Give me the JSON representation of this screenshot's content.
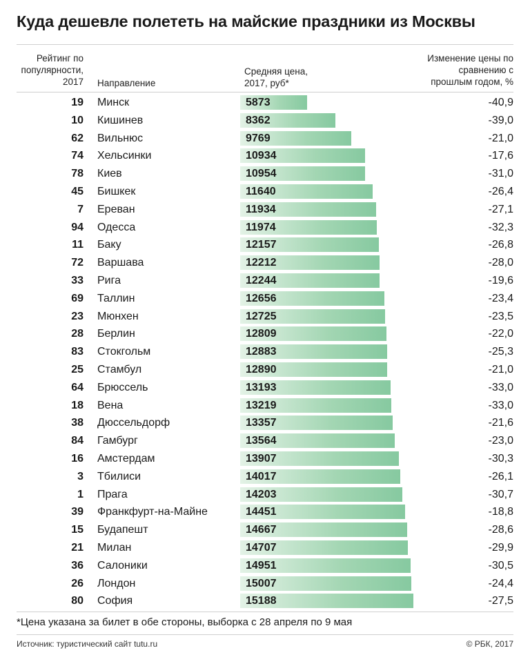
{
  "title": "Куда дешевле полететь на майские праздники из Москвы",
  "headers": {
    "rank": "Рейтинг по популярности, 2017",
    "destination": "Направление",
    "price": "Средняя цена, 2017, руб*",
    "change": "Изменение цены по сравнению с прошлым годом, %"
  },
  "footnote": "*Цена указана за билет в обе стороны, выборка с 28 апреля по 9 мая",
  "source": "Источник: туристический сайт tutu.ru",
  "credit": "© РБК, 2017",
  "colors": {
    "bar_start": "#e3f2e6",
    "bar_end": "#86c9a0",
    "text": "#1a1a1a",
    "rule": "#cfcfcf"
  },
  "chart_data": {
    "type": "bar",
    "orientation": "horizontal",
    "title": "Куда дешевле полететь на майские праздники из Москвы",
    "xlabel": "Средняя цена, 2017, руб*",
    "xlim": [
      0,
      15188
    ],
    "rows": [
      {
        "rank": "19",
        "city": "Минск",
        "price": 5873,
        "price_label": "5873",
        "change": "-40,9"
      },
      {
        "rank": "10",
        "city": "Кишинев",
        "price": 8362,
        "price_label": "8362",
        "change": "-39,0"
      },
      {
        "rank": "62",
        "city": "Вильнюс",
        "price": 9769,
        "price_label": "9769",
        "change": "-21,0"
      },
      {
        "rank": "74",
        "city": "Хельсинки",
        "price": 10934,
        "price_label": "10934",
        "change": "-17,6"
      },
      {
        "rank": "78",
        "city": "Киев",
        "price": 10954,
        "price_label": "10954",
        "change": "-31,0"
      },
      {
        "rank": "45",
        "city": "Бишкек",
        "price": 11640,
        "price_label": "11640",
        "change": "-26,4"
      },
      {
        "rank": "7",
        "city": "Ереван",
        "price": 11934,
        "price_label": "11934",
        "change": "-27,1"
      },
      {
        "rank": "94",
        "city": "Одесса",
        "price": 11974,
        "price_label": "11974",
        "change": "-32,3"
      },
      {
        "rank": "11",
        "city": "Баку",
        "price": 12157,
        "price_label": "12157",
        "change": "-26,8"
      },
      {
        "rank": "72",
        "city": "Варшава",
        "price": 12212,
        "price_label": "12212",
        "change": "-28,0"
      },
      {
        "rank": "33",
        "city": "Рига",
        "price": 12244,
        "price_label": "12244",
        "change": "-19,6"
      },
      {
        "rank": "69",
        "city": "Таллин",
        "price": 12656,
        "price_label": "12656",
        "change": "-23,4"
      },
      {
        "rank": "23",
        "city": "Мюнхен",
        "price": 12725,
        "price_label": "12725",
        "change": "-23,5"
      },
      {
        "rank": "28",
        "city": "Берлин",
        "price": 12809,
        "price_label": "12809",
        "change": "-22,0"
      },
      {
        "rank": "83",
        "city": "Стокгольм",
        "price": 12883,
        "price_label": "12883",
        "change": "-25,3"
      },
      {
        "rank": "25",
        "city": "Стамбул",
        "price": 12890,
        "price_label": "12890",
        "change": "-21,0"
      },
      {
        "rank": "64",
        "city": "Брюссель",
        "price": 13193,
        "price_label": "13193",
        "change": "-33,0"
      },
      {
        "rank": "18",
        "city": "Вена",
        "price": 13219,
        "price_label": "13219",
        "change": "-33,0"
      },
      {
        "rank": "38",
        "city": "Дюссельдорф",
        "price": 13357,
        "price_label": "13357",
        "change": "-21,6"
      },
      {
        "rank": "84",
        "city": "Гамбург",
        "price": 13564,
        "price_label": "13564",
        "change": "-23,0"
      },
      {
        "rank": "16",
        "city": "Амстердам",
        "price": 13907,
        "price_label": "13907",
        "change": "-30,3"
      },
      {
        "rank": "3",
        "city": "Тбилиси",
        "price": 14017,
        "price_label": "14017",
        "change": "-26,1"
      },
      {
        "rank": "1",
        "city": "Прага",
        "price": 14203,
        "price_label": "14203",
        "change": "-30,7"
      },
      {
        "rank": "39",
        "city": "Франкфурт-на-Майне",
        "price": 14451,
        "price_label": "14451",
        "change": "-18,8"
      },
      {
        "rank": "15",
        "city": "Будапешт",
        "price": 14667,
        "price_label": "14667",
        "change": "-28,6"
      },
      {
        "rank": "21",
        "city": "Милан",
        "price": 14707,
        "price_label": "14707",
        "change": "-29,9"
      },
      {
        "rank": "36",
        "city": "Салоники",
        "price": 14951,
        "price_label": "14951",
        "change": "-30,5"
      },
      {
        "rank": "26",
        "city": "Лондон",
        "price": 15007,
        "price_label": "15007",
        "change": "-24,4"
      },
      {
        "rank": "80",
        "city": "София",
        "price": 15188,
        "price_label": "15188",
        "change": "-27,5"
      }
    ]
  }
}
